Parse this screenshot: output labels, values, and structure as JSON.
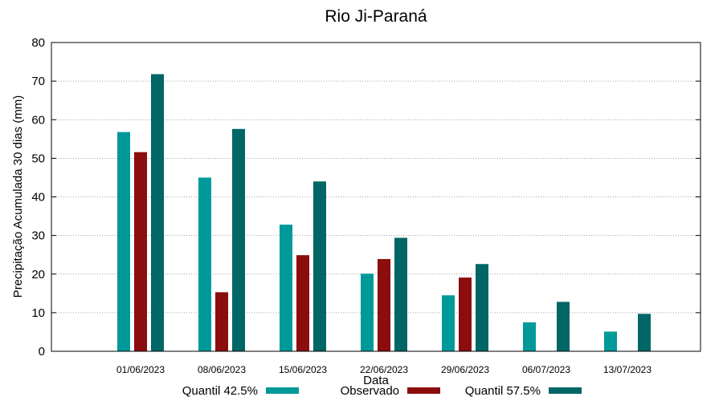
{
  "chart_data": {
    "type": "bar",
    "title": "Rio Ji-Paraná",
    "xlabel": "Data",
    "ylabel": "Precipitação Acumulada 30 dias (mm)",
    "ylim": [
      0,
      80
    ],
    "yticks": [
      0,
      10,
      20,
      30,
      40,
      50,
      60,
      70,
      80
    ],
    "grid": true,
    "legend_position": "bottom",
    "categories": [
      "01/06/2023",
      "08/06/2023",
      "15/06/2023",
      "22/06/2023",
      "29/06/2023",
      "06/07/2023",
      "13/07/2023"
    ],
    "series": [
      {
        "name": "Quantil 42.5%",
        "color": "#009999",
        "values": [
          56.8,
          45.0,
          32.8,
          20.1,
          14.5,
          7.5,
          5.1
        ]
      },
      {
        "name": "Observado",
        "color": "#8b0d0d",
        "values": [
          51.6,
          15.3,
          24.9,
          23.9,
          19.1,
          null,
          null
        ]
      },
      {
        "name": "Quantil 57.5%",
        "color": "#006666",
        "values": [
          71.8,
          57.6,
          44.0,
          29.4,
          22.6,
          12.8,
          9.7
        ]
      }
    ]
  }
}
